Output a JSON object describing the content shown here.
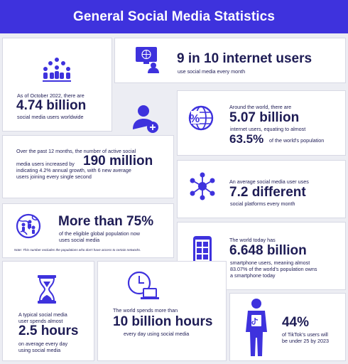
{
  "header": {
    "title": "General Social Media Statistics"
  },
  "internet_users": {
    "headline": "9 in 10 internet users",
    "sub": "use social media every month"
  },
  "social_users": {
    "intro": "As of October 2022, there are",
    "headline": "4.74 billion",
    "sub": "social media users worldwide"
  },
  "world_internet": {
    "intro": "Around the world, there are",
    "headline": "5.07 billion",
    "sub1": "internet users, equating to almost",
    "percent": "63.5%",
    "sub2": "of the world's population"
  },
  "growth": {
    "line1": "Over the past 12 months, the number of active social",
    "line2a": "media users increased by",
    "headline": "190 million",
    "line3": "indicating 4.2% annual growth, with 6 new average",
    "line4": "users joining every single second"
  },
  "platforms": {
    "intro": "An average social media user uses",
    "headline": "7.2 different",
    "sub": "social platforms every month"
  },
  "eligible": {
    "headline": "More than 75%",
    "sub1": "of the eligible global population now",
    "sub2": "uses social media",
    "note": "Note: This number excludes the populations who don't have access to certain networks."
  },
  "smartphone": {
    "intro": "The world today has",
    "headline": "6.648 billion",
    "sub1": "smartphone users, meaning almost",
    "sub2": "83.07% of the world's population owns",
    "sub3": "a smartphone today"
  },
  "daily_time": {
    "line1": "A typical social media",
    "line2": "user spends almost",
    "headline": "2.5 hours",
    "sub1": "on average every day",
    "sub2": "using social media"
  },
  "world_hours": {
    "intro": "The world spends more than",
    "headline": "10 billion hours",
    "sub": "every day using social media"
  },
  "tiktok": {
    "headline": "44%",
    "sub1": "of TikTok's users will",
    "sub2": "be under 25 by 2023"
  },
  "colors": {
    "brand": "#3e32dd",
    "text": "#1e1c55",
    "background": "#ecedf3"
  },
  "icons": [
    "people-group-icon",
    "computer-user-icon",
    "add-user-icon",
    "globe-percent-icon",
    "network-icon",
    "globe-people-icon",
    "smartphone-icon",
    "hourglass-icon",
    "clock-laptop-icon",
    "tiktok-user-icon"
  ]
}
